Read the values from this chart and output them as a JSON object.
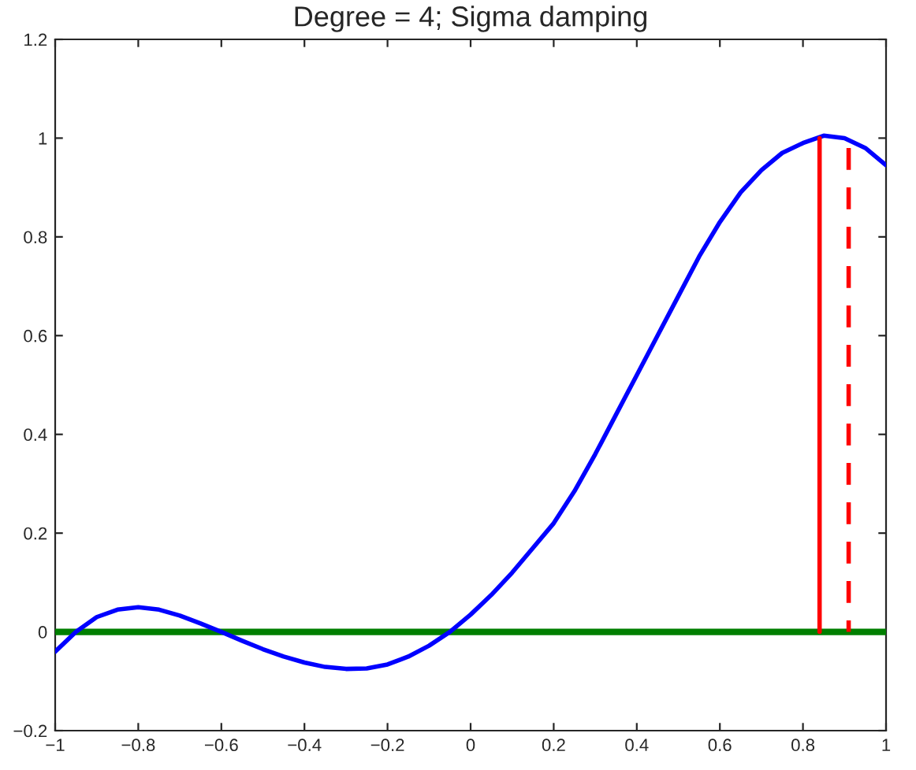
{
  "chart_data": {
    "type": "line",
    "title": "Degree = 4; Sigma damping",
    "series": [
      {
        "color": "#0000ff",
        "x": [
          -1,
          -0.95,
          -0.9,
          -0.85,
          -0.8,
          -0.75,
          -0.7,
          -0.65,
          -0.6,
          -0.55,
          -0.5,
          -0.45,
          -0.4,
          -0.35,
          -0.3,
          -0.25,
          -0.2,
          -0.15,
          -0.1,
          -0.05,
          0,
          0.05,
          0.1,
          0.15,
          0.2,
          0.25,
          0.3,
          0.35,
          0.4,
          0.45,
          0.5,
          0.55,
          0.6,
          0.65,
          0.7,
          0.75,
          0.8,
          0.85,
          0.9,
          0.95,
          1.0
        ],
        "values": [
          -0.04,
          0.0,
          0.03,
          0.045,
          0.05,
          0.045,
          0.033,
          0.017,
          0.0,
          -0.018,
          -0.035,
          -0.05,
          -0.062,
          -0.071,
          -0.075,
          -0.074,
          -0.066,
          -0.05,
          -0.028,
          0.0,
          0.035,
          0.075,
          0.12,
          0.17,
          0.22,
          0.285,
          0.36,
          0.44,
          0.52,
          0.6,
          0.68,
          0.76,
          0.83,
          0.89,
          0.935,
          0.97,
          0.99,
          1.005,
          1.0,
          0.98,
          0.945
        ]
      },
      {
        "color": "#ff0000",
        "x": [
          0.84,
          0.84
        ],
        "values": [
          0,
          1.0
        ]
      },
      {
        "color": "#ff0000",
        "line_style": "dashed",
        "x": [
          0.91,
          0.91
        ],
        "values": [
          0.98,
          0
        ]
      }
    ],
    "ref_lines": [
      {
        "axis": "y",
        "value": 0,
        "color": "#007f00"
      }
    ],
    "xlim": [
      -1,
      1
    ],
    "ylim": [
      -0.2,
      1.2
    ],
    "xticks": [
      {
        "value": -1,
        "label": "−1"
      },
      {
        "value": -0.8,
        "label": "−0.8"
      },
      {
        "value": -0.6,
        "label": "−0.6"
      },
      {
        "value": -0.4,
        "label": "−0.4"
      },
      {
        "value": -0.2,
        "label": "−0.2"
      },
      0,
      0.2,
      0.4,
      0.6,
      0.8,
      1
    ],
    "yticks": [
      {
        "value": -0.2,
        "label": "−0.2"
      },
      0,
      0.2,
      0.4,
      0.6,
      0.8,
      1,
      1.2
    ],
    "grid": false,
    "legend": false,
    "marker": "none"
  }
}
